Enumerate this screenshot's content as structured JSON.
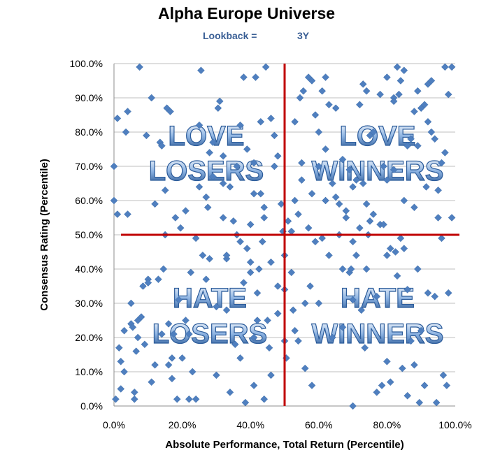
{
  "chart_data": {
    "type": "scatter",
    "title": "Alpha Europe Universe",
    "subtitle_label": "Lookback =",
    "subtitle_value": "3Y",
    "xlabel": "Absolute Performance, Total Return (Percentile)",
    "ylabel": "Consensus Rating (Percentile)",
    "xlim": [
      0,
      100
    ],
    "ylim": [
      0,
      100
    ],
    "x_ticks": [
      "0.0%",
      "20.0%",
      "40.0%",
      "60.0%",
      "80.0%",
      "100.0%"
    ],
    "y_ticks": [
      "0.0%",
      "10.0%",
      "20.0%",
      "30.0%",
      "40.0%",
      "50.0%",
      "60.0%",
      "70.0%",
      "80.0%",
      "90.0%",
      "100.0%"
    ],
    "grid": "horizontal",
    "divider_lines": {
      "x": 50,
      "y": 50
    },
    "quadrant_labels": [
      {
        "lines": [
          "LOVE",
          "LOSERS"
        ],
        "quadrant": "top-left"
      },
      {
        "lines": [
          "LOVE",
          "WINNERS"
        ],
        "quadrant": "top-right"
      },
      {
        "lines": [
          "HATE",
          "LOSERS"
        ],
        "quadrant": "bottom-left"
      },
      {
        "lines": [
          "HATE",
          "WINNERS"
        ],
        "quadrant": "bottom-right"
      }
    ],
    "colors": {
      "points": "#4f7fbf",
      "divider": "#c00000",
      "grid": "#bfbfbf",
      "subtitle": "#3a5f95"
    },
    "points": [
      [
        0,
        70
      ],
      [
        0,
        60
      ],
      [
        0.5,
        2
      ],
      [
        1,
        56
      ],
      [
        1,
        84
      ],
      [
        1.5,
        17
      ],
      [
        2,
        5
      ],
      [
        2,
        13
      ],
      [
        3,
        10
      ],
      [
        3,
        22
      ],
      [
        3.5,
        80
      ],
      [
        4,
        86
      ],
      [
        4,
        56
      ],
      [
        5,
        30
      ],
      [
        5,
        24
      ],
      [
        5.5,
        23
      ],
      [
        6,
        4
      ],
      [
        6,
        2
      ],
      [
        6.5,
        16
      ],
      [
        7,
        25
      ],
      [
        7,
        20
      ],
      [
        7.5,
        99
      ],
      [
        8,
        26
      ],
      [
        8.5,
        35
      ],
      [
        9,
        18
      ],
      [
        9.5,
        79
      ],
      [
        10,
        37
      ],
      [
        10,
        36
      ],
      [
        11,
        90
      ],
      [
        11,
        7
      ],
      [
        12,
        59
      ],
      [
        12,
        12
      ],
      [
        13,
        37
      ],
      [
        13.5,
        77
      ],
      [
        14,
        76
      ],
      [
        14,
        21
      ],
      [
        14.5,
        40
      ],
      [
        15,
        50
      ],
      [
        15,
        63
      ],
      [
        15.5,
        87
      ],
      [
        16,
        24
      ],
      [
        16,
        12
      ],
      [
        16.5,
        86
      ],
      [
        17,
        14
      ],
      [
        17,
        8
      ],
      [
        17.5,
        21
      ],
      [
        18,
        55
      ],
      [
        18.5,
        2
      ],
      [
        19,
        31
      ],
      [
        19.5,
        52
      ],
      [
        20,
        14
      ],
      [
        21,
        57
      ],
      [
        21,
        25
      ],
      [
        22,
        21
      ],
      [
        22,
        2
      ],
      [
        22.5,
        39
      ],
      [
        23,
        10
      ],
      [
        24,
        49
      ],
      [
        24,
        2
      ],
      [
        25,
        82
      ],
      [
        25,
        64
      ],
      [
        25.5,
        98
      ],
      [
        26,
        44
      ],
      [
        27,
        61
      ],
      [
        27,
        37
      ],
      [
        27.5,
        58
      ],
      [
        28,
        74
      ],
      [
        28,
        43
      ],
      [
        29,
        77
      ],
      [
        29,
        67
      ],
      [
        30,
        29
      ],
      [
        30,
        9
      ],
      [
        30.5,
        87
      ],
      [
        31,
        89
      ],
      [
        32,
        73
      ],
      [
        32,
        55
      ],
      [
        32,
        65
      ],
      [
        33,
        43
      ],
      [
        33,
        44
      ],
      [
        33,
        28
      ],
      [
        34,
        64
      ],
      [
        34,
        4
      ],
      [
        35,
        54
      ],
      [
        35.5,
        18
      ],
      [
        36,
        70
      ],
      [
        36,
        50
      ],
      [
        37,
        82
      ],
      [
        37,
        48
      ],
      [
        37,
        14
      ],
      [
        38,
        96
      ],
      [
        38,
        36
      ],
      [
        38.5,
        1
      ],
      [
        39,
        75
      ],
      [
        39,
        46
      ],
      [
        40,
        53
      ],
      [
        40,
        39
      ],
      [
        40,
        42
      ],
      [
        41,
        71
      ],
      [
        41,
        62
      ],
      [
        41,
        20
      ],
      [
        41,
        6
      ],
      [
        41.5,
        96
      ],
      [
        42,
        25
      ],
      [
        42,
        33
      ],
      [
        42.5,
        40
      ],
      [
        43,
        83
      ],
      [
        43,
        62
      ],
      [
        43.5,
        48
      ],
      [
        44,
        58
      ],
      [
        44,
        55
      ],
      [
        44,
        2
      ],
      [
        44.5,
        99
      ],
      [
        45,
        25
      ],
      [
        45.5,
        17
      ],
      [
        46,
        84
      ],
      [
        46,
        42
      ],
      [
        46,
        9
      ],
      [
        47,
        79
      ],
      [
        47,
        70
      ],
      [
        48,
        73
      ],
      [
        48,
        27
      ],
      [
        48,
        35
      ],
      [
        49,
        59
      ],
      [
        49.5,
        51
      ],
      [
        50,
        44
      ],
      [
        50,
        34
      ],
      [
        50,
        19
      ],
      [
        50.5,
        14
      ],
      [
        51,
        54
      ],
      [
        52,
        51
      ],
      [
        52,
        39
      ],
      [
        52.5,
        28
      ],
      [
        53,
        60
      ],
      [
        53,
        83
      ],
      [
        53,
        22
      ],
      [
        54,
        56
      ],
      [
        54,
        19
      ],
      [
        54.5,
        90
      ],
      [
        55,
        71
      ],
      [
        55,
        66
      ],
      [
        55.5,
        92
      ],
      [
        56,
        30
      ],
      [
        56,
        11
      ],
      [
        57,
        96
      ],
      [
        57,
        52
      ],
      [
        57.5,
        35
      ],
      [
        58,
        95
      ],
      [
        58,
        62
      ],
      [
        58,
        6
      ],
      [
        59,
        85
      ],
      [
        59,
        48
      ],
      [
        60,
        80
      ],
      [
        60,
        70
      ],
      [
        60,
        30
      ],
      [
        61,
        92
      ],
      [
        61,
        49
      ],
      [
        62,
        96
      ],
      [
        62,
        75
      ],
      [
        62,
        60
      ],
      [
        63,
        88
      ],
      [
        63,
        44
      ],
      [
        64,
        65
      ],
      [
        64,
        20
      ],
      [
        65,
        87
      ],
      [
        65,
        61
      ],
      [
        66,
        59
      ],
      [
        66,
        50
      ],
      [
        67,
        72
      ],
      [
        67,
        40
      ],
      [
        67,
        23
      ],
      [
        68,
        55
      ],
      [
        68,
        57
      ],
      [
        69,
        69
      ],
      [
        69,
        39
      ],
      [
        69.5,
        40
      ],
      [
        70,
        48
      ],
      [
        70,
        64
      ],
      [
        70,
        31
      ],
      [
        70,
        0
      ],
      [
        71,
        66
      ],
      [
        71,
        44
      ],
      [
        72,
        88
      ],
      [
        72,
        52
      ],
      [
        72.5,
        28
      ],
      [
        73,
        94
      ],
      [
        73,
        65
      ],
      [
        73.5,
        17
      ],
      [
        74,
        92
      ],
      [
        74,
        59
      ],
      [
        74,
        40
      ],
      [
        74.5,
        50
      ],
      [
        75,
        79
      ],
      [
        75,
        54
      ],
      [
        76,
        80
      ],
      [
        76,
        56
      ],
      [
        77,
        32
      ],
      [
        77,
        4
      ],
      [
        78,
        91
      ],
      [
        78,
        53
      ],
      [
        78.5,
        6
      ],
      [
        79,
        70
      ],
      [
        79,
        53
      ],
      [
        80,
        96
      ],
      [
        80,
        66
      ],
      [
        80,
        44
      ],
      [
        80,
        13
      ],
      [
        81,
        46
      ],
      [
        81,
        7
      ],
      [
        82,
        90
      ],
      [
        82,
        89
      ],
      [
        82,
        69
      ],
      [
        82.5,
        45
      ],
      [
        83,
        99
      ],
      [
        83,
        38
      ],
      [
        83.5,
        91
      ],
      [
        84,
        95
      ],
      [
        84,
        49
      ],
      [
        84.5,
        11
      ],
      [
        85,
        98
      ],
      [
        85,
        46
      ],
      [
        85,
        60
      ],
      [
        86,
        76
      ],
      [
        86,
        34
      ],
      [
        86,
        3
      ],
      [
        87,
        78
      ],
      [
        87,
        19
      ],
      [
        88,
        86
      ],
      [
        88,
        58
      ],
      [
        88,
        12
      ],
      [
        89,
        92
      ],
      [
        89,
        76
      ],
      [
        89,
        40
      ],
      [
        89.5,
        1
      ],
      [
        90,
        87
      ],
      [
        90,
        22
      ],
      [
        91,
        88
      ],
      [
        91,
        6
      ],
      [
        91.5,
        64
      ],
      [
        92,
        94
      ],
      [
        92,
        83
      ],
      [
        92,
        33
      ],
      [
        93,
        95
      ],
      [
        93,
        80
      ],
      [
        94,
        78
      ],
      [
        94,
        32
      ],
      [
        94.5,
        1
      ],
      [
        95,
        63
      ],
      [
        95,
        55
      ],
      [
        96,
        71
      ],
      [
        96,
        49
      ],
      [
        96.5,
        9
      ],
      [
        97,
        99
      ],
      [
        97,
        74
      ],
      [
        97.5,
        6
      ],
      [
        98,
        91
      ],
      [
        98,
        33
      ],
      [
        99,
        99
      ],
      [
        99,
        55
      ]
    ]
  }
}
